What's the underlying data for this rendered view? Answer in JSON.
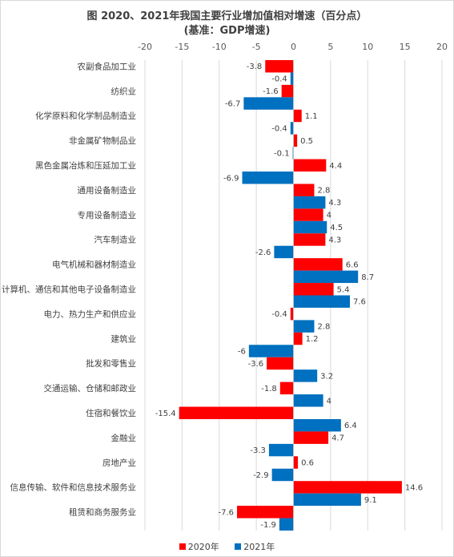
{
  "chart_data": {
    "type": "bar",
    "orientation": "horizontal",
    "title": "图 2020、2021年我国主要行业增加值相对增速（百分点）",
    "subtitle": "(基准：GDP增速)",
    "xlim": [
      -20,
      20
    ],
    "xticks": [
      -20,
      -15,
      -10,
      -5,
      0,
      5,
      10,
      15,
      20
    ],
    "grid": true,
    "legend_position": "bottom",
    "categories": [
      "农副食品加工业",
      "纺织业",
      "化学原料和化学制品制造业",
      "非金属矿物制品业",
      "黑色金属冶炼和压延加工业",
      "通用设备制造业",
      "专用设备制造业",
      "汽车制造业",
      "电气机械和器材制造业",
      "计算机、通信和其他电子设备制造业",
      "电力、热力生产和供应业",
      "建筑业",
      "批发和零售业",
      "交通运输、仓储和邮政业",
      "住宿和餐饮业",
      "金融业",
      "房地产业",
      "信息传输、软件和信息技术服务业",
      "租赁和商务服务业"
    ],
    "series": [
      {
        "name": "2020年",
        "color": "#ff0000",
        "values": [
          -3.8,
          -1.6,
          1.1,
          0.5,
          4.4,
          2.8,
          4,
          4.3,
          6.6,
          5.4,
          -0.4,
          1.2,
          -3.6,
          -1.8,
          -15.4,
          4.7,
          0.6,
          14.6,
          -7.6
        ]
      },
      {
        "name": "2021年",
        "color": "#0070c0",
        "values": [
          -0.4,
          -6.7,
          -0.4,
          -0.1,
          -6.9,
          4.3,
          4.5,
          -2.6,
          8.7,
          7.6,
          2.8,
          -6,
          3.2,
          4,
          6.4,
          -3.3,
          -2.9,
          9.1,
          -1.9
        ]
      }
    ]
  }
}
